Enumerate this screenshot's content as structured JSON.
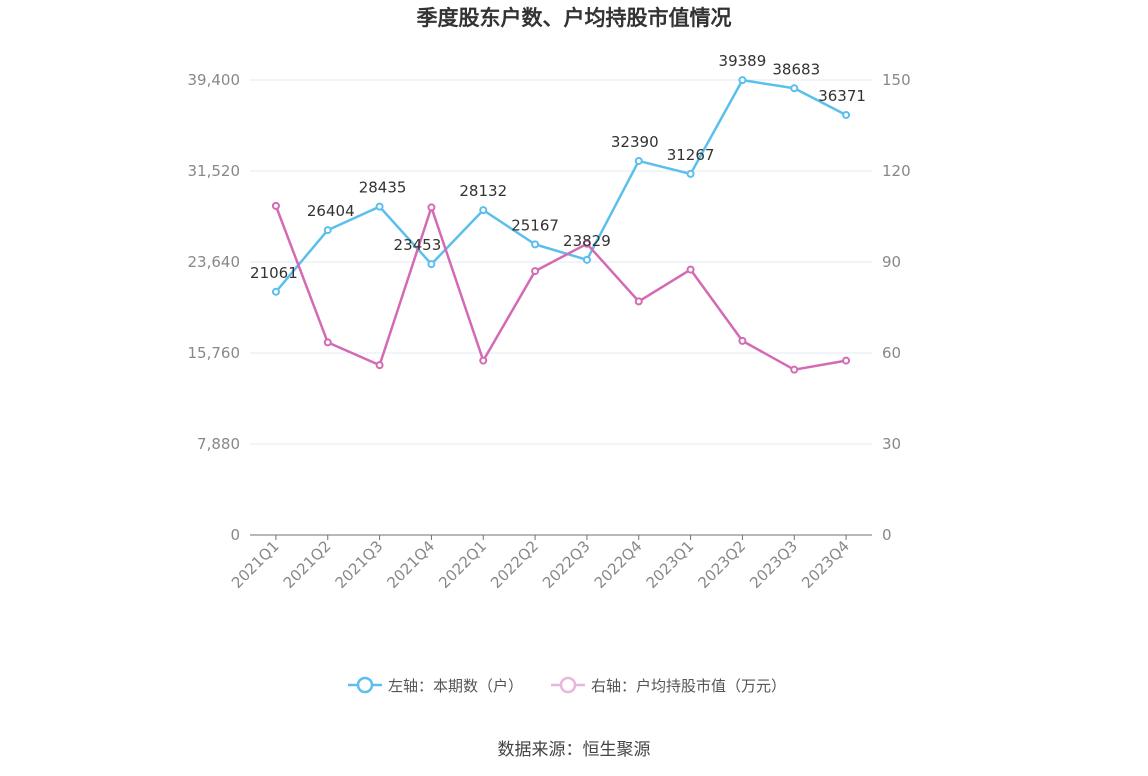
{
  "chart_data": {
    "type": "line",
    "title": "季度股东户数、户均持股市值情况",
    "categories": [
      "2021Q1",
      "2021Q2",
      "2021Q3",
      "2021Q4",
      "2022Q1",
      "2022Q2",
      "2022Q3",
      "2022Q4",
      "2023Q1",
      "2023Q2",
      "2023Q3",
      "2023Q4"
    ],
    "left_axis": {
      "ylim": [
        0,
        39400
      ],
      "ticks": [
        "0",
        "7,880",
        "15,760",
        "23,640",
        "31,520",
        "39,400"
      ],
      "tick_values": [
        0,
        7880,
        15760,
        23640,
        31520,
        39400
      ]
    },
    "right_axis": {
      "ylim": [
        0,
        150
      ],
      "ticks": [
        "0",
        "30",
        "60",
        "90",
        "120",
        "150"
      ],
      "tick_values": [
        0,
        30,
        60,
        90,
        120,
        150
      ]
    },
    "series": [
      {
        "name": "左轴：本期数（户）",
        "axis": "left",
        "color": "#5bbfee",
        "values": [
          21061,
          26404,
          28435,
          23453,
          28132,
          25167,
          23829,
          32390,
          31267,
          39389,
          38683,
          36371
        ],
        "labels": [
          "21061",
          "26404",
          "28435",
          "23453",
          "28132",
          "25167",
          "23829",
          "32390",
          "31267",
          "39389",
          "38683",
          "36371"
        ]
      },
      {
        "name": "右轴：户均持股市值（万元）",
        "axis": "right",
        "color": "#d46ab3",
        "values": [
          108.5,
          63.5,
          56.0,
          108.0,
          57.5,
          87.0,
          96.0,
          77.0,
          87.5,
          64.0,
          54.5,
          57.5
        ]
      }
    ],
    "grid": true,
    "legend_position": "bottom"
  },
  "source_text": "数据来源：恒生聚源"
}
